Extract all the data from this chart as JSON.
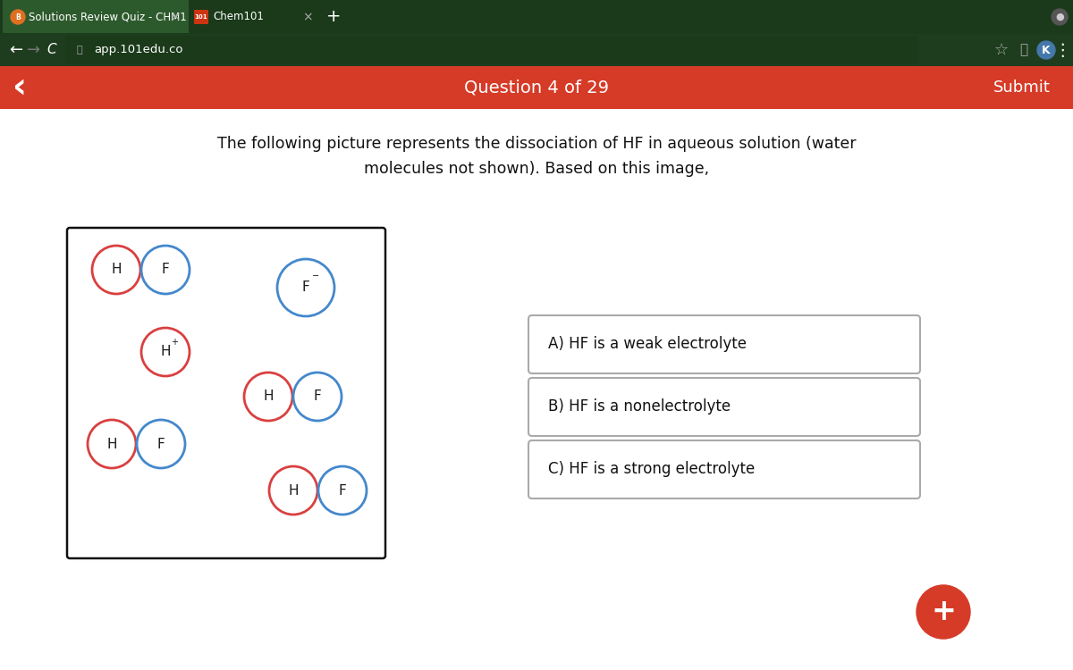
{
  "bg_color": "#ffffff",
  "browser_bar_color": "#1b3a1b",
  "browser_tab_active_color": "#2a5a2a",
  "browser_tab_inactive_color": "#1b3a1b",
  "addr_bar_color": "#1e3d1e",
  "nav_bar_color": "#d63b28",
  "tab1_text": "Solutions Review Quiz - CHM1",
  "tab2_text": "Chem101",
  "nav_text": "Question 4 of 29",
  "nav_submit": "Submit",
  "question_text_line1": "The following picture represents the dissociation of HF in aqueous solution (water",
  "question_text_line2": "molecules not shown). Based on this image,",
  "options": [
    "A) HF is a weak electrolyte",
    "B) HF is a nonelectrolyte",
    "C) HF is a strong electrolyte"
  ],
  "h_color": "#d94040",
  "f_color": "#4488cc",
  "url_text": "app.101edu.co",
  "plus_button_color": "#d63b28"
}
